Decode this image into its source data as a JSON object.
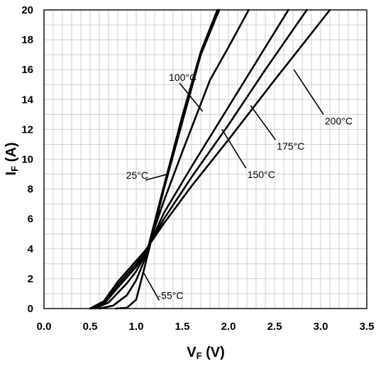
{
  "chart_data": {
    "type": "line",
    "xlabel": {
      "main": "V",
      "sub": "F",
      "unit": " (V)"
    },
    "ylabel": {
      "main": "I",
      "sub": "F",
      "unit": " (A)"
    },
    "xlim": [
      0,
      3.5
    ],
    "ylim": [
      0,
      20
    ],
    "x_ticks": [
      "0.0",
      "0.5",
      "1.0",
      "1.5",
      "2.0",
      "2.5",
      "3.0",
      "3.5"
    ],
    "y_ticks": [
      "0",
      "2",
      "4",
      "6",
      "8",
      "10",
      "12",
      "14",
      "16",
      "18",
      "20"
    ],
    "grid": true,
    "series": [
      {
        "name": "-55°C",
        "points": [
          [
            0.78,
            0
          ],
          [
            0.9,
            0.05
          ],
          [
            1.0,
            0.6
          ],
          [
            1.1,
            3.0
          ],
          [
            1.3,
            8.0
          ],
          [
            1.5,
            12.5
          ],
          [
            1.7,
            17.0
          ],
          [
            1.9,
            20.0
          ]
        ]
      },
      {
        "name": "25°C",
        "points": [
          [
            0.6,
            0
          ],
          [
            0.75,
            0.2
          ],
          [
            0.9,
            0.9
          ],
          [
            1.0,
            1.9
          ],
          [
            1.1,
            3.4
          ],
          [
            1.3,
            8.2
          ],
          [
            1.5,
            12.9
          ],
          [
            1.7,
            17.2
          ],
          [
            1.88,
            20.0
          ]
        ]
      },
      {
        "name": "100°C",
        "points": [
          [
            0.55,
            0
          ],
          [
            0.7,
            0.4
          ],
          [
            0.9,
            1.7
          ],
          [
            1.0,
            2.5
          ],
          [
            1.1,
            3.6
          ],
          [
            1.3,
            7.2
          ],
          [
            1.5,
            10.5
          ],
          [
            1.8,
            15.3
          ],
          [
            2.0,
            17.5
          ],
          [
            2.22,
            20.0
          ]
        ]
      },
      {
        "name": "150°C",
        "points": [
          [
            0.52,
            0
          ],
          [
            0.65,
            0.3
          ],
          [
            0.8,
            1.4
          ],
          [
            1.0,
            2.8
          ],
          [
            1.1,
            3.7
          ],
          [
            1.3,
            6.4
          ],
          [
            1.6,
            9.5
          ],
          [
            2.0,
            13.5
          ],
          [
            2.4,
            17.5
          ],
          [
            2.65,
            20.0
          ]
        ]
      },
      {
        "name": "175°C",
        "points": [
          [
            0.5,
            0
          ],
          [
            0.65,
            0.4
          ],
          [
            0.8,
            1.6
          ],
          [
            1.0,
            3.0
          ],
          [
            1.1,
            3.8
          ],
          [
            1.3,
            6.0
          ],
          [
            1.6,
            8.8
          ],
          [
            2.0,
            12.3
          ],
          [
            2.4,
            16.0
          ],
          [
            2.85,
            20.0
          ]
        ]
      },
      {
        "name": "200°C",
        "points": [
          [
            0.5,
            0
          ],
          [
            0.65,
            0.5
          ],
          [
            0.8,
            1.8
          ],
          [
            1.0,
            3.2
          ],
          [
            1.1,
            3.9
          ],
          [
            1.3,
            5.7
          ],
          [
            1.6,
            8.2
          ],
          [
            2.0,
            11.3
          ],
          [
            2.5,
            15.3
          ],
          [
            3.1,
            20.0
          ]
        ]
      }
    ],
    "annotations": [
      {
        "text": "-55°C",
        "series": "-55°C",
        "label_at": [
          1.25,
          0.55
        ],
        "points_to": [
          1.08,
          2.4
        ]
      },
      {
        "text": "25°C",
        "series": "25°C",
        "label_at": [
          1.1,
          8.6
        ],
        "points_to": [
          1.34,
          9.0
        ]
      },
      {
        "text": "100°C",
        "series": "100°C",
        "label_at": [
          1.47,
          15.1
        ],
        "points_to": [
          1.72,
          13.2
        ]
      },
      {
        "text": "150°C",
        "series": "150°C",
        "label_at": [
          2.19,
          9.4
        ],
        "points_to": [
          1.93,
          12.0
        ]
      },
      {
        "text": "175°C",
        "series": "175°C",
        "label_at": [
          2.51,
          11.3
        ],
        "points_to": [
          2.24,
          13.6
        ]
      },
      {
        "text": "200°C",
        "series": "200°C",
        "label_at": [
          3.03,
          13.0
        ],
        "points_to": [
          2.71,
          16.0
        ]
      }
    ]
  }
}
